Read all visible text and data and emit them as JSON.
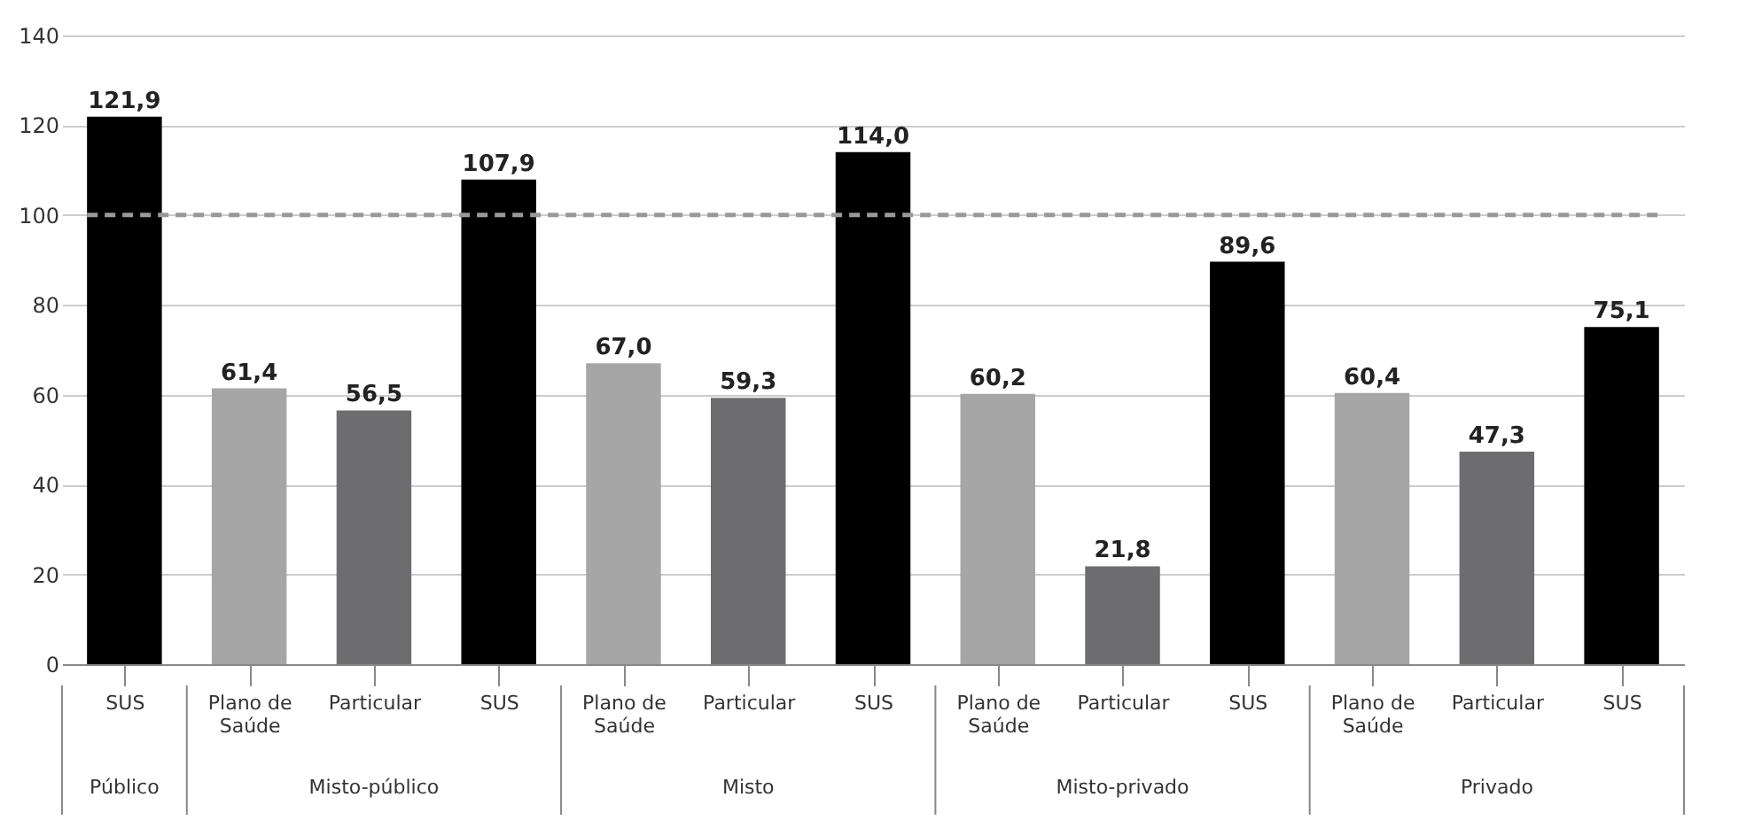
{
  "chart_data": {
    "type": "bar",
    "categories": [
      "SUS",
      "Plano de Saúde",
      "Particular",
      "SUS",
      "Plano de Saúde",
      "Particular",
      "SUS",
      "Plano de Saúde",
      "Particular",
      "SUS",
      "Plano de Saúde",
      "Particular",
      "SUS"
    ],
    "values": [
      121.9,
      61.4,
      56.5,
      107.9,
      67.0,
      59.3,
      114.0,
      60.2,
      21.8,
      89.6,
      60.4,
      47.3,
      75.1
    ],
    "value_labels": [
      "121,9",
      "61,4",
      "56,5",
      "107,9",
      "67,0",
      "59,3",
      "114,0",
      "60,2",
      "21,8",
      "89,6",
      "60,4",
      "47,3",
      "75,1"
    ],
    "colors": [
      "#000000",
      "#a6a6a6",
      "#6d6d70",
      "#000000",
      "#a6a6a6",
      "#6d6d70",
      "#000000",
      "#a6a6a6",
      "#6d6d70",
      "#000000",
      "#a6a6a6",
      "#6d6d70",
      "#000000"
    ],
    "annotations": [
      "Público",
      "Misto-público",
      "Misto",
      "Misto-privado",
      "Privado"
    ],
    "ylim": [
      0,
      140
    ],
    "yticks": [
      0,
      20,
      40,
      60,
      80,
      100,
      120,
      140
    ],
    "grid": "y",
    "ref_lines": [
      {
        "axis": "y",
        "value": 100,
        "color": "#999999",
        "line_style": "dashed"
      }
    ]
  }
}
